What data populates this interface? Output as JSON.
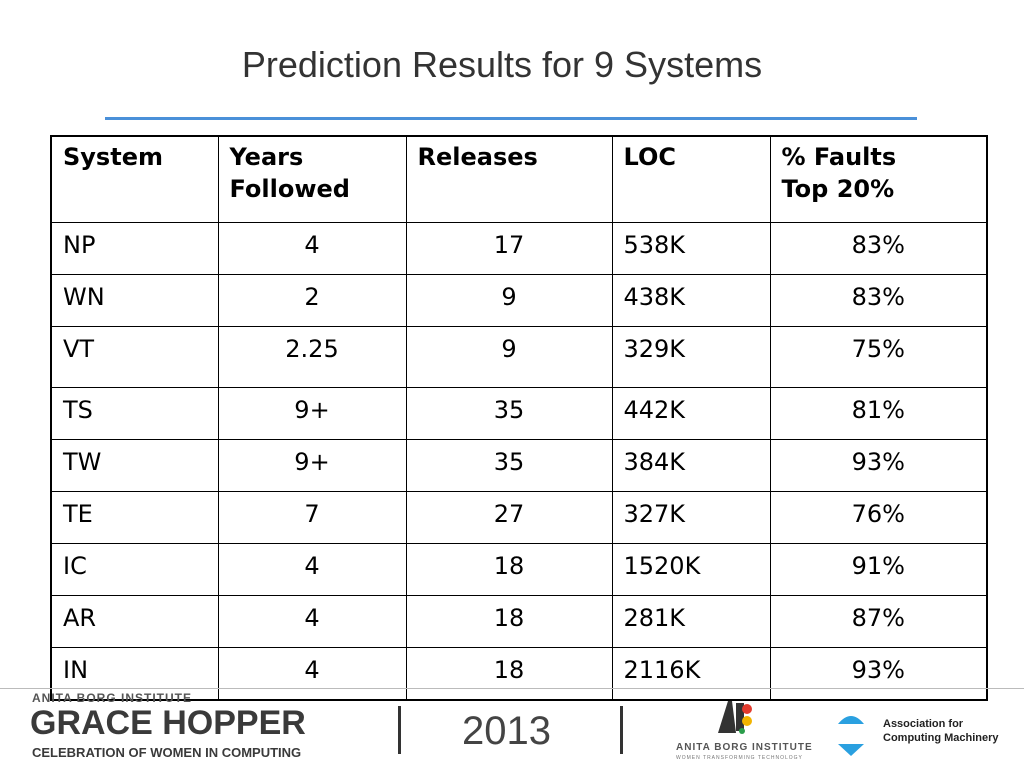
{
  "slide": {
    "title": "Prediction Results for 9 Systems"
  },
  "table": {
    "headers": {
      "system": "System",
      "years_line1": "Years",
      "years_line2": "Followed",
      "releases": "Releases",
      "loc": "LOC",
      "faults_line1": "% Faults",
      "faults_line2": "Top 20%"
    },
    "rows": [
      {
        "system": "NP",
        "years": "4",
        "releases": "17",
        "loc": "538K",
        "faults": "83%"
      },
      {
        "system": "WN",
        "years": "2",
        "releases": "9",
        "loc": "438K",
        "faults": "83%"
      },
      {
        "system": "VT",
        "years": "2.25",
        "releases": "9",
        "loc": "329K",
        "faults": "75%"
      },
      {
        "system": "TS",
        "years": "9+",
        "releases": "35",
        "loc": "442K",
        "faults": "81%"
      },
      {
        "system": "TW",
        "years": "9+",
        "releases": "35",
        "loc": "384K",
        "faults": "93%"
      },
      {
        "system": "TE",
        "years": "7",
        "releases": "27",
        "loc": "327K",
        "faults": "76%"
      },
      {
        "system": "IC",
        "years": "4",
        "releases": "18",
        "loc": "1520K",
        "faults": "91%"
      },
      {
        "system": "AR",
        "years": "4",
        "releases": "18",
        "loc": "281K",
        "faults": "87%"
      },
      {
        "system": "IN",
        "years": "4",
        "releases": "18",
        "loc": "2116K",
        "faults": "93%"
      }
    ]
  },
  "footer": {
    "abi_institute": "ANITA BORG INSTITUTE",
    "gh_title": "GRACE HOPPER",
    "gh_subtitle": "CELEBRATION OF WOMEN IN COMPUTING",
    "year": "2013",
    "abi_logo_text": "ANITA BORG INSTITUTE",
    "abi_tagline": "WOMEN TRANSFORMING TECHNOLOGY",
    "acm_line1": "Association for",
    "acm_line2": "Computing Machinery"
  },
  "colors": {
    "title_rule": "#4a90d9",
    "acm_blue": "#2aa0e0"
  }
}
